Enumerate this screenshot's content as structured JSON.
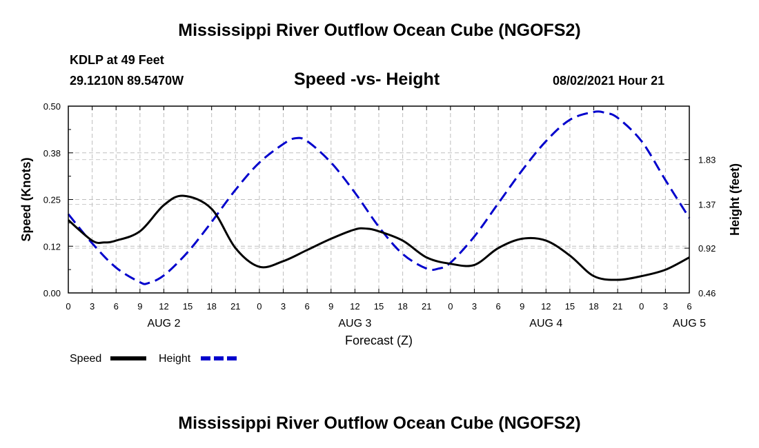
{
  "header": {
    "top_title": "Mississippi River Outflow Ocean Cube (NGOFS2)",
    "station": "KDLP at 49 Feet",
    "coords": "29.1210N  89.5470W",
    "chart_title": "Speed -vs- Height",
    "datetime": "08/02/2021 Hour 21",
    "bottom_title": "Mississippi River Outflow Ocean Cube (NGOFS2)"
  },
  "chart_data": {
    "type": "line",
    "title": "Speed -vs- Height",
    "xlabel": "Forecast (Z)",
    "ylabel": "Speed (Knots)",
    "y2label": "Height (feet)",
    "x_range_hours": [
      0,
      78
    ],
    "ylim": [
      0,
      0.5
    ],
    "y2lim": [
      0.46,
      2.38
    ],
    "x_tick_hours": [
      0,
      3,
      6,
      9,
      12,
      15,
      18,
      21,
      24,
      27,
      30,
      33,
      36,
      39,
      42,
      45,
      48,
      51,
      54,
      57,
      60,
      63,
      66,
      69,
      72,
      75,
      78
    ],
    "x_tick_labels": [
      "0",
      "3",
      "6",
      "9",
      "12",
      "15",
      "18",
      "21",
      "0",
      "3",
      "6",
      "9",
      "12",
      "15",
      "18",
      "21",
      "0",
      "3",
      "6",
      "9",
      "12",
      "15",
      "18",
      "21",
      "0",
      "3",
      "6"
    ],
    "day_labels": [
      {
        "label": "AUG 2",
        "hour": 12
      },
      {
        "label": "AUG 3",
        "hour": 36
      },
      {
        "label": "AUG 4",
        "hour": 60
      },
      {
        "label": "AUG 5",
        "hour": 78
      }
    ],
    "y_ticks": [
      0.0,
      0.125,
      0.25,
      0.375,
      0.5
    ],
    "y_tick_labels": [
      "0.00",
      "0.12",
      "0.25",
      "0.38",
      "0.50"
    ],
    "y2_ticks": [
      0.46,
      0.92,
      1.37,
      1.83
    ],
    "y2_tick_labels": [
      "0.46",
      "0.92",
      "1.37",
      "1.83"
    ],
    "grid": true,
    "legend": [
      {
        "name": "Speed",
        "color": "#000000",
        "dash": false
      },
      {
        "name": "Height",
        "color": "#0000cc",
        "dash": true
      }
    ],
    "series": [
      {
        "name": "Speed",
        "axis": "left",
        "color": "#000000",
        "x": [
          0,
          3,
          4.5,
          6,
          9,
          12,
          14.5,
          18,
          21,
          24,
          27,
          30,
          33,
          36,
          37.5,
          39,
          42,
          45,
          48,
          51,
          54,
          57,
          60,
          63,
          66,
          69,
          72,
          75,
          78
        ],
        "values": [
          0.195,
          0.14,
          0.135,
          0.14,
          0.165,
          0.235,
          0.26,
          0.225,
          0.12,
          0.07,
          0.085,
          0.115,
          0.145,
          0.17,
          0.172,
          0.165,
          0.14,
          0.095,
          0.078,
          0.075,
          0.12,
          0.145,
          0.14,
          0.1,
          0.045,
          0.035,
          0.045,
          0.062,
          0.095
        ]
      },
      {
        "name": "Height",
        "axis": "right",
        "color": "#0000cc",
        "x": [
          0,
          3,
          6,
          9,
          10,
          12,
          15,
          18,
          21,
          24,
          27,
          28.5,
          30,
          33,
          36,
          39,
          42,
          45,
          46.5,
          48,
          51,
          54,
          57,
          60,
          63,
          66,
          67.5,
          69,
          72,
          75,
          78
        ],
        "values": [
          1.27,
          0.97,
          0.72,
          0.57,
          0.56,
          0.64,
          0.88,
          1.19,
          1.52,
          1.8,
          1.99,
          2.05,
          2.02,
          1.8,
          1.49,
          1.14,
          0.86,
          0.71,
          0.71,
          0.77,
          1.04,
          1.38,
          1.72,
          2.02,
          2.24,
          2.32,
          2.31,
          2.26,
          2.02,
          1.62,
          1.23
        ]
      }
    ]
  }
}
